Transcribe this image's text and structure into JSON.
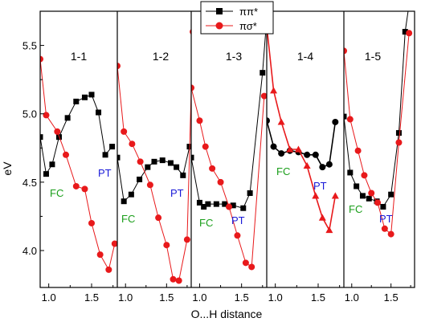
{
  "chart_data": {
    "type": "line",
    "xlabel": "O...H distance",
    "ylabel": "eV",
    "ylim": [
      3.73,
      5.75
    ],
    "y_ticks": [
      "4.0",
      "4.5",
      "5.0",
      "5.5"
    ],
    "y_tick_values": [
      4.0,
      4.5,
      5.0,
      5.5
    ],
    "legend": {
      "placement": "top-center",
      "entries": [
        {
          "label": "ππ*",
          "marker": "square",
          "color": "#000000"
        },
        {
          "label": "πσ*",
          "marker": "circle",
          "color": "#e8191b"
        }
      ]
    },
    "colors": {
      "pipi": "#000000",
      "pisigma": "#e8191b",
      "fc_label": "#1a9e1a",
      "pt_label": "#1a1ad8"
    },
    "panels": [
      {
        "title": "1-1",
        "xlim": [
          0.9,
          1.8
        ],
        "x_ticks": [
          "1.0",
          "1.5"
        ],
        "x_tick_values": [
          1.0,
          1.5
        ],
        "fc_label": "FC",
        "pt_label": "PT",
        "series": [
          {
            "key": "pipi",
            "marker": "square",
            "x": [
              0.9,
              0.97,
              1.04,
              1.12,
              1.22,
              1.32,
              1.42,
              1.5,
              1.58,
              1.66,
              1.74
            ],
            "y": [
              4.83,
              4.56,
              4.63,
              4.83,
              4.97,
              5.09,
              5.12,
              5.14,
              5.01,
              4.7,
              4.76
            ]
          },
          {
            "key": "pisigma",
            "marker": "circle",
            "x": [
              0.9,
              0.97,
              1.1,
              1.2,
              1.32,
              1.42,
              1.5,
              1.6,
              1.7,
              1.77
            ],
            "y": [
              5.4,
              4.99,
              4.87,
              4.7,
              4.47,
              4.45,
              4.2,
              3.97,
              3.86,
              4.05
            ]
          }
        ]
      },
      {
        "title": "1-2",
        "xlim": [
          0.9,
          1.8
        ],
        "x_ticks": [
          "1.0",
          "1.5"
        ],
        "x_tick_values": [
          1.0,
          1.5
        ],
        "fc_label": "FC",
        "pt_label": "PT",
        "series": [
          {
            "key": "pipi",
            "marker": "square",
            "x": [
              0.9,
              0.98,
              1.07,
              1.17,
              1.27,
              1.35,
              1.45,
              1.55,
              1.62,
              1.7,
              1.78
            ],
            "y": [
              4.68,
              4.36,
              4.41,
              4.52,
              4.61,
              4.65,
              4.66,
              4.64,
              4.61,
              4.55,
              4.76
            ]
          },
          {
            "key": "pisigma",
            "marker": "circle",
            "x": [
              0.9,
              0.98,
              1.08,
              1.18,
              1.3,
              1.4,
              1.5,
              1.58,
              1.65,
              1.75,
              1.82
            ],
            "y": [
              5.35,
              4.87,
              4.78,
              4.65,
              4.48,
              4.24,
              4.04,
              3.79,
              3.78,
              4.08,
              5.6
            ]
          }
        ]
      },
      {
        "title": "1-3",
        "xlim": [
          0.9,
          1.8
        ],
        "x_ticks": [
          "1.0",
          "1.5"
        ],
        "x_tick_values": [
          1.0,
          1.5
        ],
        "fc_label": "FC",
        "pt_label": "PT",
        "series": [
          {
            "key": "pipi",
            "marker": "square",
            "x": [
              0.9,
              1.0,
              1.05,
              1.1,
              1.2,
              1.3,
              1.4,
              1.52,
              1.6,
              1.75,
              1.8
            ],
            "y": [
              4.68,
              4.35,
              4.32,
              4.34,
              4.34,
              4.34,
              4.33,
              4.31,
              4.42,
              5.3,
              5.7
            ]
          },
          {
            "key": "pisigma",
            "marker": "circle",
            "x": [
              0.9,
              1.0,
              1.07,
              1.15,
              1.25,
              1.35,
              1.45,
              1.55,
              1.62,
              1.77
            ],
            "y": [
              5.19,
              4.95,
              4.76,
              4.6,
              4.5,
              4.32,
              4.11,
              3.91,
              3.88,
              5.13
            ]
          }
        ]
      },
      {
        "title": "1-4",
        "xlim": [
          0.9,
          1.8
        ],
        "x_ticks": [
          "1.0",
          "1.5"
        ],
        "x_tick_values": [
          1.0,
          1.5
        ],
        "fc_label": "FC",
        "pt_label": "PT",
        "series": [
          {
            "key": "pipi",
            "marker": "circle",
            "color_key": "pipi",
            "x": [
              0.9,
              0.98,
              1.07,
              1.17,
              1.27,
              1.37,
              1.47,
              1.55,
              1.63,
              1.7
            ],
            "y": [
              4.95,
              4.76,
              4.71,
              4.73,
              4.72,
              4.7,
              4.7,
              4.61,
              4.63,
              4.94
            ]
          },
          {
            "key": "pisigma",
            "marker": "triangle",
            "color_key": "pisigma",
            "x": [
              0.9,
              0.98,
              1.07,
              1.17,
              1.27,
              1.37,
              1.47,
              1.55,
              1.63,
              1.7
            ],
            "y": [
              5.64,
              5.17,
              4.94,
              4.74,
              4.74,
              4.62,
              4.4,
              4.24,
              4.15,
              4.4
            ]
          }
        ]
      },
      {
        "title": "1-5",
        "xlim": [
          0.9,
          1.8
        ],
        "x_ticks": [
          "1.0",
          "1.5"
        ],
        "x_tick_values": [
          1.0,
          1.5
        ],
        "fc_label": "FC",
        "pt_label": "PT",
        "series": [
          {
            "key": "pipi",
            "marker": "square",
            "x": [
              0.9,
              0.98,
              1.06,
              1.14,
              1.22,
              1.32,
              1.4,
              1.5,
              1.6,
              1.68,
              1.73
            ],
            "y": [
              4.98,
              4.57,
              4.47,
              4.4,
              4.38,
              4.36,
              4.32,
              4.41,
              4.86,
              5.6,
              5.8
            ]
          },
          {
            "key": "pisigma",
            "marker": "circle",
            "x": [
              0.9,
              0.98,
              1.08,
              1.16,
              1.25,
              1.33,
              1.42,
              1.5,
              1.6,
              1.73
            ],
            "y": [
              5.46,
              4.96,
              4.73,
              4.55,
              4.42,
              4.35,
              4.16,
              4.12,
              4.79,
              5.59
            ]
          }
        ]
      }
    ]
  }
}
